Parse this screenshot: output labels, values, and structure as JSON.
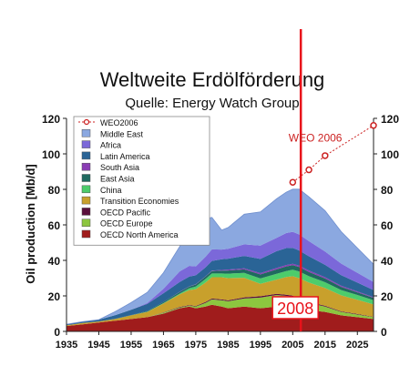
{
  "chart_data": {
    "type": "area",
    "title": "Weltweite Erdölförderung",
    "subtitle": "Quelle: Energy Watch Group",
    "ylabel": "Oil production [Mb/d]",
    "xlabel": "",
    "xlim": [
      1935,
      2030
    ],
    "ylim": [
      0,
      120
    ],
    "x_ticks": [
      1935,
      1945,
      1955,
      1965,
      1975,
      1985,
      1995,
      2005,
      2015,
      2025
    ],
    "y_ticks": [
      0,
      20,
      40,
      60,
      80,
      100,
      120
    ],
    "grid": false,
    "legend_position": "top-left",
    "x": [
      1935,
      1940,
      1945,
      1950,
      1955,
      1960,
      1965,
      1970,
      1973,
      1975,
      1978,
      1980,
      1983,
      1985,
      1990,
      1995,
      2000,
      2003,
      2005,
      2007,
      2010,
      2015,
      2020,
      2025,
      2030
    ],
    "series": [
      {
        "name": "OECD North America",
        "color": "#a01c1c",
        "values": [
          3,
          4,
          5,
          6,
          7,
          8,
          10,
          13,
          14,
          13,
          14,
          15,
          14,
          13,
          14,
          13,
          14,
          14,
          14,
          13,
          12,
          11,
          9,
          8,
          7
        ]
      },
      {
        "name": "OECD Europe",
        "color": "#8cc63f",
        "values": [
          0,
          0,
          0,
          0,
          0,
          0,
          0.5,
          0.5,
          0.5,
          1,
          2,
          3,
          3.5,
          4,
          4.5,
          6,
          6.5,
          6,
          5.5,
          5,
          4,
          3,
          2,
          1.5,
          1
        ]
      },
      {
        "name": "OECD Pacific",
        "color": "#5a0f3c",
        "values": [
          0,
          0,
          0,
          0,
          0,
          0,
          0.2,
          0.3,
          0.3,
          0.3,
          0.5,
          0.5,
          0.5,
          0.5,
          0.7,
          0.8,
          0.7,
          0.6,
          0.6,
          0.5,
          0.5,
          0.4,
          0.3,
          0.3,
          0.2
        ]
      },
      {
        "name": "Transition Economies",
        "color": "#c8a02c",
        "values": [
          0.5,
          0.7,
          0.6,
          1,
          2,
          3,
          5,
          7,
          8.5,
          9.5,
          11,
          12,
          12.5,
          12.5,
          11,
          7,
          8,
          10,
          11,
          11.5,
          11,
          10,
          9,
          8,
          7
        ]
      },
      {
        "name": "China",
        "color": "#4dcc6b",
        "values": [
          0,
          0,
          0,
          0,
          0,
          0.1,
          0.2,
          0.5,
          1,
          1.5,
          2,
          2.1,
          2.1,
          2.5,
          2.7,
          3,
          3.2,
          3.4,
          3.6,
          3.7,
          3.6,
          3.3,
          3,
          2.7,
          2.4
        ]
      },
      {
        "name": "East Asia",
        "color": "#1f6a5f",
        "values": [
          0,
          0,
          0,
          0.1,
          0.2,
          0.4,
          0.6,
          0.9,
          1,
          1.1,
          1.3,
          1.4,
          1.6,
          1.8,
          2,
          2.3,
          2.5,
          2.6,
          2.6,
          2.6,
          2.4,
          2.1,
          1.8,
          1.5,
          1.3
        ]
      },
      {
        "name": "South Asia",
        "color": "#8a3cb4",
        "values": [
          0,
          0,
          0,
          0,
          0,
          0,
          0,
          0.1,
          0.1,
          0.2,
          0.2,
          0.2,
          0.4,
          0.5,
          0.6,
          0.7,
          0.8,
          0.8,
          0.8,
          0.8,
          0.8,
          0.7,
          0.6,
          0.5,
          0.4
        ]
      },
      {
        "name": "Latin America",
        "color": "#2a6496",
        "values": [
          0.5,
          0.8,
          1,
          2,
          3,
          4,
          5,
          5.5,
          5.5,
          5,
          5,
          5.5,
          6,
          6.2,
          7,
          8,
          9.5,
          9.5,
          9,
          8.5,
          8,
          7,
          6,
          5,
          4
        ]
      },
      {
        "name": "Africa",
        "color": "#7b68d9",
        "values": [
          0,
          0,
          0,
          0,
          0,
          0.5,
          2.5,
          6,
          6,
          5,
          6,
          6.5,
          5.5,
          5.5,
          6.5,
          7.5,
          7.5,
          8.5,
          9,
          9,
          8.5,
          7.5,
          6.5,
          5.5,
          4.5
        ]
      },
      {
        "name": "Middle East",
        "color": "#8ba8e0",
        "values": [
          0,
          0,
          0,
          2,
          4,
          6,
          9,
          14,
          21,
          19,
          21.5,
          18,
          11,
          12,
          17,
          19,
          22,
          23,
          24,
          25.5,
          25,
          23,
          18,
          14,
          10
        ]
      }
    ],
    "weo2006": {
      "name": "WEO2006",
      "label": "WEO 2006",
      "color": "#cc2222",
      "x": [
        2005,
        2010,
        2015,
        2030
      ],
      "values": [
        84,
        91,
        99,
        116
      ]
    },
    "marker": {
      "year": 2007.5,
      "label": "2008",
      "color": "#e8121a"
    }
  }
}
